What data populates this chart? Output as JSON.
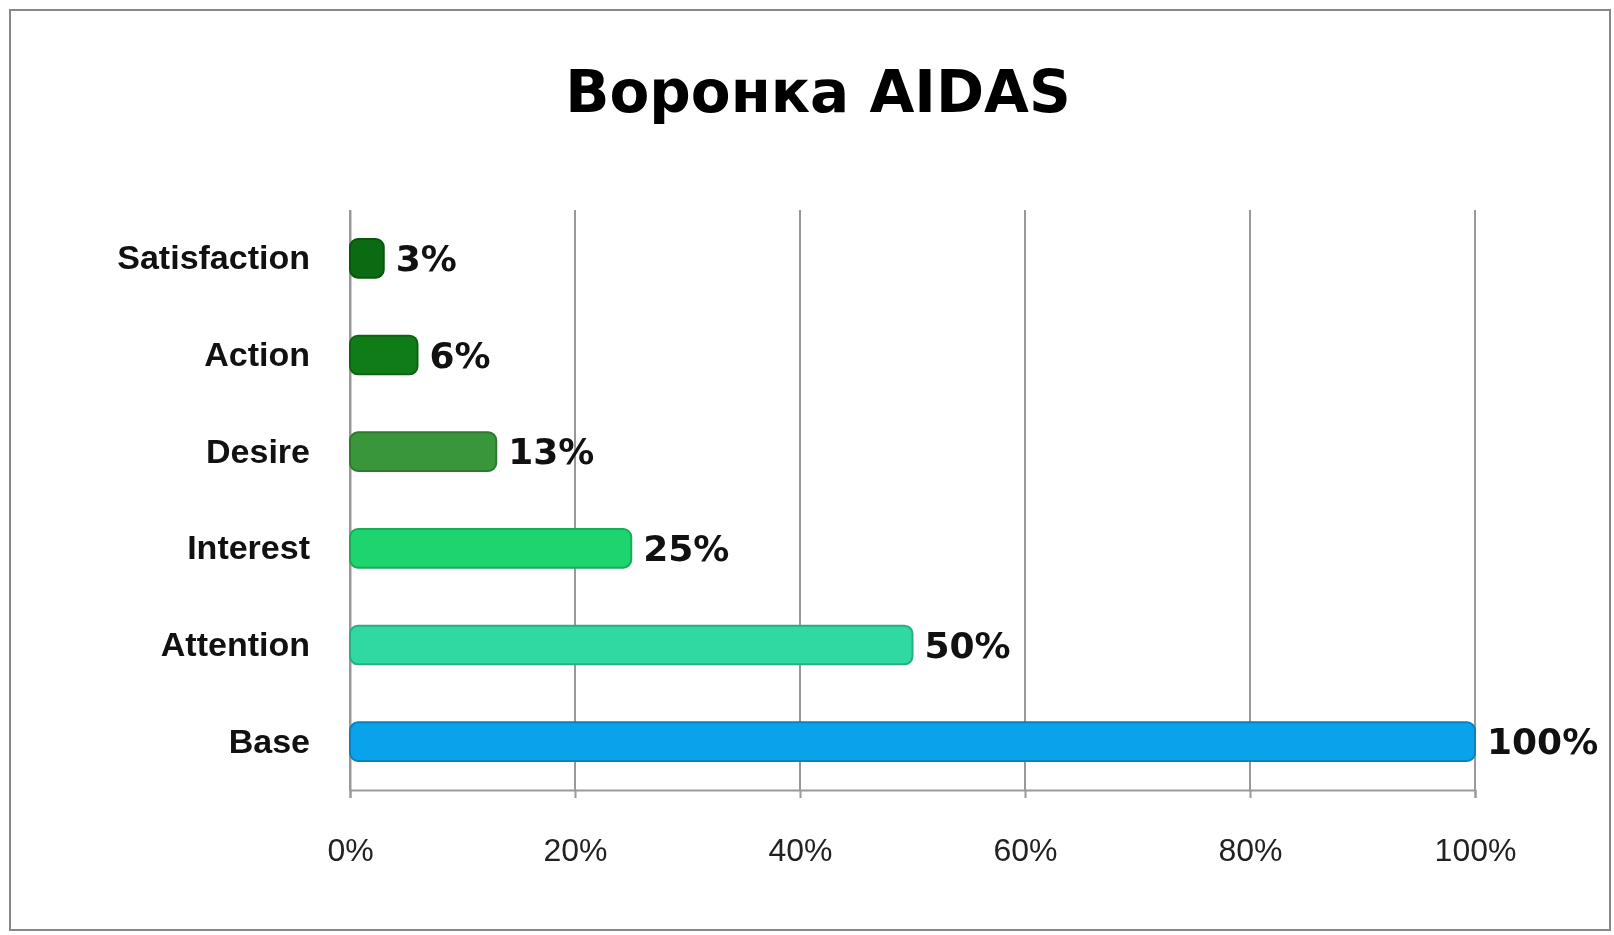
{
  "chart_data": {
    "type": "bar",
    "title": "Воронка AIDAS",
    "orientation": "horizontal",
    "categories": [
      "Satisfaction",
      "Action",
      "Desire",
      "Interest",
      "Attention",
      "Base"
    ],
    "values": [
      3,
      6,
      13,
      25,
      50,
      100
    ],
    "colors": [
      "#0b6b12",
      "#107c17",
      "#3a963a",
      "#1ed46e",
      "#30d9a2",
      "#0aa2ea"
    ],
    "value_labels": [
      "3%",
      "6%",
      "13%",
      "25%",
      "50%",
      "100%"
    ],
    "xlim": [
      0,
      100
    ],
    "xticks": [
      {
        "value": 0,
        "label": "0%"
      },
      {
        "value": 20,
        "label": "20%"
      },
      {
        "value": 40,
        "label": "40%"
      },
      {
        "value": 60,
        "label": "60%"
      },
      {
        "value": 80,
        "label": "80%"
      },
      {
        "value": 100,
        "label": "100%"
      }
    ],
    "grid": "x"
  }
}
